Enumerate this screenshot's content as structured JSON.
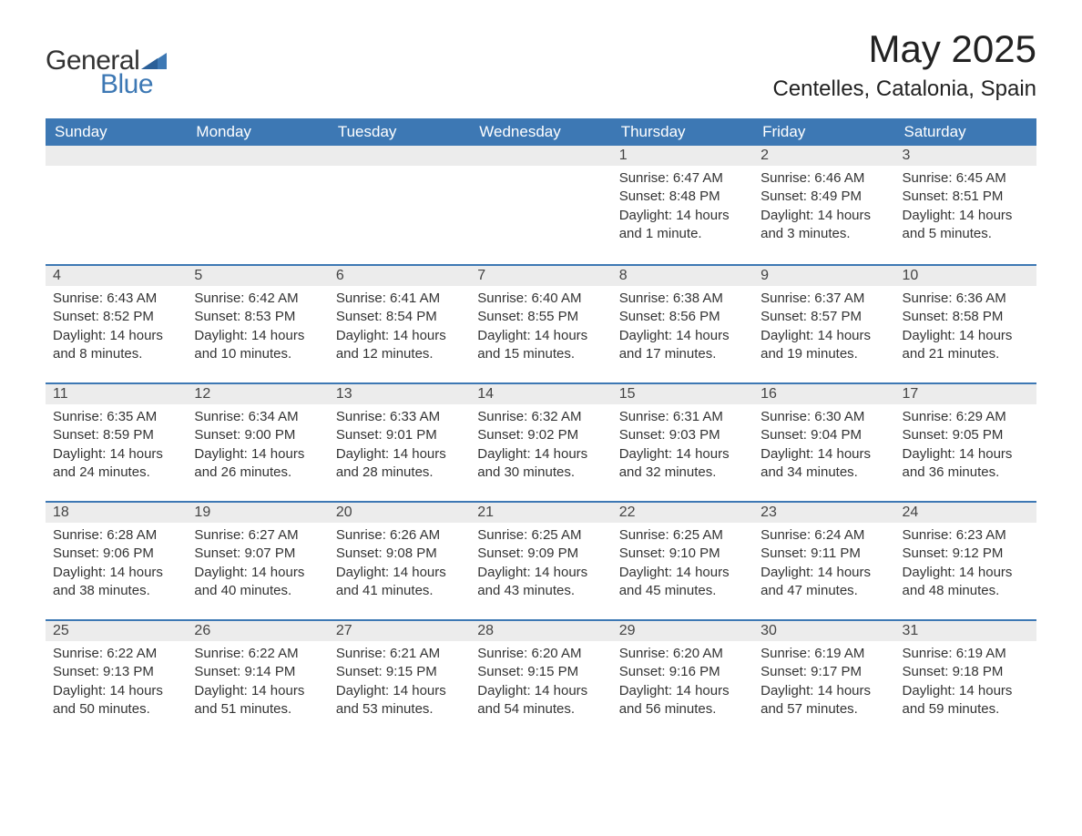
{
  "brand": {
    "text_general": "General",
    "text_blue": "Blue",
    "accent_color": "#3d78b4"
  },
  "title": "May 2025",
  "location": "Centelles, Catalonia, Spain",
  "theme": {
    "header_bg": "#3d78b4",
    "header_fg": "#ffffff",
    "daynum_bg": "#ececec",
    "row_divider": "#3d78b4",
    "body_fg": "#333333",
    "title_fontsize": 42,
    "location_fontsize": 24,
    "dayheader_fontsize": 17,
    "cell_fontsize": 15
  },
  "day_headers": [
    "Sunday",
    "Monday",
    "Tuesday",
    "Wednesday",
    "Thursday",
    "Friday",
    "Saturday"
  ],
  "weeks": [
    [
      null,
      null,
      null,
      null,
      {
        "n": "1",
        "sunrise": "Sunrise: 6:47 AM",
        "sunset": "Sunset: 8:48 PM",
        "daylight": "Daylight: 14 hours and 1 minute."
      },
      {
        "n": "2",
        "sunrise": "Sunrise: 6:46 AM",
        "sunset": "Sunset: 8:49 PM",
        "daylight": "Daylight: 14 hours and 3 minutes."
      },
      {
        "n": "3",
        "sunrise": "Sunrise: 6:45 AM",
        "sunset": "Sunset: 8:51 PM",
        "daylight": "Daylight: 14 hours and 5 minutes."
      }
    ],
    [
      {
        "n": "4",
        "sunrise": "Sunrise: 6:43 AM",
        "sunset": "Sunset: 8:52 PM",
        "daylight": "Daylight: 14 hours and 8 minutes."
      },
      {
        "n": "5",
        "sunrise": "Sunrise: 6:42 AM",
        "sunset": "Sunset: 8:53 PM",
        "daylight": "Daylight: 14 hours and 10 minutes."
      },
      {
        "n": "6",
        "sunrise": "Sunrise: 6:41 AM",
        "sunset": "Sunset: 8:54 PM",
        "daylight": "Daylight: 14 hours and 12 minutes."
      },
      {
        "n": "7",
        "sunrise": "Sunrise: 6:40 AM",
        "sunset": "Sunset: 8:55 PM",
        "daylight": "Daylight: 14 hours and 15 minutes."
      },
      {
        "n": "8",
        "sunrise": "Sunrise: 6:38 AM",
        "sunset": "Sunset: 8:56 PM",
        "daylight": "Daylight: 14 hours and 17 minutes."
      },
      {
        "n": "9",
        "sunrise": "Sunrise: 6:37 AM",
        "sunset": "Sunset: 8:57 PM",
        "daylight": "Daylight: 14 hours and 19 minutes."
      },
      {
        "n": "10",
        "sunrise": "Sunrise: 6:36 AM",
        "sunset": "Sunset: 8:58 PM",
        "daylight": "Daylight: 14 hours and 21 minutes."
      }
    ],
    [
      {
        "n": "11",
        "sunrise": "Sunrise: 6:35 AM",
        "sunset": "Sunset: 8:59 PM",
        "daylight": "Daylight: 14 hours and 24 minutes."
      },
      {
        "n": "12",
        "sunrise": "Sunrise: 6:34 AM",
        "sunset": "Sunset: 9:00 PM",
        "daylight": "Daylight: 14 hours and 26 minutes."
      },
      {
        "n": "13",
        "sunrise": "Sunrise: 6:33 AM",
        "sunset": "Sunset: 9:01 PM",
        "daylight": "Daylight: 14 hours and 28 minutes."
      },
      {
        "n": "14",
        "sunrise": "Sunrise: 6:32 AM",
        "sunset": "Sunset: 9:02 PM",
        "daylight": "Daylight: 14 hours and 30 minutes."
      },
      {
        "n": "15",
        "sunrise": "Sunrise: 6:31 AM",
        "sunset": "Sunset: 9:03 PM",
        "daylight": "Daylight: 14 hours and 32 minutes."
      },
      {
        "n": "16",
        "sunrise": "Sunrise: 6:30 AM",
        "sunset": "Sunset: 9:04 PM",
        "daylight": "Daylight: 14 hours and 34 minutes."
      },
      {
        "n": "17",
        "sunrise": "Sunrise: 6:29 AM",
        "sunset": "Sunset: 9:05 PM",
        "daylight": "Daylight: 14 hours and 36 minutes."
      }
    ],
    [
      {
        "n": "18",
        "sunrise": "Sunrise: 6:28 AM",
        "sunset": "Sunset: 9:06 PM",
        "daylight": "Daylight: 14 hours and 38 minutes."
      },
      {
        "n": "19",
        "sunrise": "Sunrise: 6:27 AM",
        "sunset": "Sunset: 9:07 PM",
        "daylight": "Daylight: 14 hours and 40 minutes."
      },
      {
        "n": "20",
        "sunrise": "Sunrise: 6:26 AM",
        "sunset": "Sunset: 9:08 PM",
        "daylight": "Daylight: 14 hours and 41 minutes."
      },
      {
        "n": "21",
        "sunrise": "Sunrise: 6:25 AM",
        "sunset": "Sunset: 9:09 PM",
        "daylight": "Daylight: 14 hours and 43 minutes."
      },
      {
        "n": "22",
        "sunrise": "Sunrise: 6:25 AM",
        "sunset": "Sunset: 9:10 PM",
        "daylight": "Daylight: 14 hours and 45 minutes."
      },
      {
        "n": "23",
        "sunrise": "Sunrise: 6:24 AM",
        "sunset": "Sunset: 9:11 PM",
        "daylight": "Daylight: 14 hours and 47 minutes."
      },
      {
        "n": "24",
        "sunrise": "Sunrise: 6:23 AM",
        "sunset": "Sunset: 9:12 PM",
        "daylight": "Daylight: 14 hours and 48 minutes."
      }
    ],
    [
      {
        "n": "25",
        "sunrise": "Sunrise: 6:22 AM",
        "sunset": "Sunset: 9:13 PM",
        "daylight": "Daylight: 14 hours and 50 minutes."
      },
      {
        "n": "26",
        "sunrise": "Sunrise: 6:22 AM",
        "sunset": "Sunset: 9:14 PM",
        "daylight": "Daylight: 14 hours and 51 minutes."
      },
      {
        "n": "27",
        "sunrise": "Sunrise: 6:21 AM",
        "sunset": "Sunset: 9:15 PM",
        "daylight": "Daylight: 14 hours and 53 minutes."
      },
      {
        "n": "28",
        "sunrise": "Sunrise: 6:20 AM",
        "sunset": "Sunset: 9:15 PM",
        "daylight": "Daylight: 14 hours and 54 minutes."
      },
      {
        "n": "29",
        "sunrise": "Sunrise: 6:20 AM",
        "sunset": "Sunset: 9:16 PM",
        "daylight": "Daylight: 14 hours and 56 minutes."
      },
      {
        "n": "30",
        "sunrise": "Sunrise: 6:19 AM",
        "sunset": "Sunset: 9:17 PM",
        "daylight": "Daylight: 14 hours and 57 minutes."
      },
      {
        "n": "31",
        "sunrise": "Sunrise: 6:19 AM",
        "sunset": "Sunset: 9:18 PM",
        "daylight": "Daylight: 14 hours and 59 minutes."
      }
    ]
  ]
}
